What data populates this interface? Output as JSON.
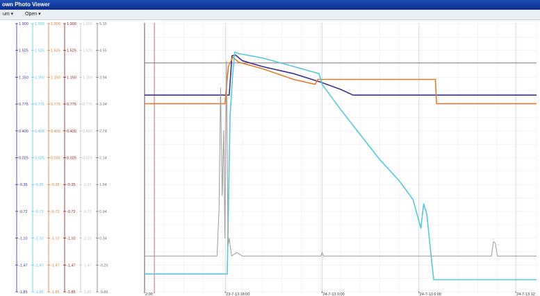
{
  "window": {
    "title": "own Photo Viewer"
  },
  "menu": [
    {
      "label": "um"
    },
    {
      "label": "Open"
    }
  ],
  "chart_data": {
    "type": "line",
    "grid": true,
    "legend": "none",
    "axes": [
      {
        "color": "#3b2f8f",
        "ticks": [
          "1.900",
          "1.525",
          "1.150",
          "0.775",
          "0.400",
          "0.025",
          "-0.35",
          "-0.72",
          "-1.10",
          "-1.47",
          "-1.85"
        ]
      },
      {
        "color": "#56c8de",
        "ticks": [
          "1.900",
          "1.525",
          "1.150",
          "0.775",
          "0.400",
          "0.025",
          "-0.35",
          "-0.72",
          "-1.10",
          "-1.47",
          "-1.85"
        ]
      },
      {
        "color": "#e07b2c",
        "ticks": [
          "1.900",
          "1.525",
          "1.150",
          "0.775",
          "0.400",
          "0.025",
          "-0.35",
          "-0.72",
          "-1.10",
          "-1.47",
          "-1.85"
        ]
      },
      {
        "color": "#8b1a1a",
        "ticks": [
          "1.900",
          "1.525",
          "1.150",
          "0.775",
          "0.400",
          "0.025",
          "-0.35",
          "-0.72",
          "-1.10",
          "-1.47",
          "-1.85"
        ]
      },
      {
        "color": "#c0c0c0",
        "ticks": [
          "1.900",
          "1.525",
          "1.150",
          "0.775",
          "0.400",
          "0.025",
          "-0.35",
          "-0.72",
          "-1.10",
          "-1.47",
          "-1.85"
        ]
      },
      {
        "color": "#777777",
        "ticks": [
          "5.15",
          "4.55",
          "3.94",
          "3.34",
          "2.74",
          "2.14",
          "1.54",
          "0.94",
          "0.34",
          "-0.26",
          "-0.86"
        ]
      }
    ],
    "ylim": [
      -1.85,
      1.9
    ],
    "xlim": [
      0,
      100
    ],
    "x_ticks": [
      {
        "x": 0,
        "label": "2:00"
      },
      {
        "x": 20.6,
        "label": "23-7-13 18:00"
      },
      {
        "x": 45.3,
        "label": "24-7-13 0:00"
      },
      {
        "x": 70.0,
        "label": "24-7-13 6:00"
      },
      {
        "x": 94.7,
        "label": "24-7-13 12:"
      }
    ],
    "reference_lines": [
      {
        "x": 2.5,
        "color": "#d66a6a"
      },
      {
        "y": 1.35,
        "color": "#8a7a7a"
      }
    ],
    "series": [
      {
        "color": "#3b2f8f",
        "points": [
          [
            0,
            0.9
          ],
          [
            21.6,
            0.9
          ],
          [
            22.3,
            1.45
          ],
          [
            23.2,
            1.46
          ],
          [
            25,
            1.38
          ],
          [
            30,
            1.3
          ],
          [
            38,
            1.2
          ],
          [
            45,
            1.08
          ],
          [
            50,
            0.98
          ],
          [
            53.2,
            0.9
          ],
          [
            100,
            0.9
          ]
        ]
      },
      {
        "color": "#e07b2c",
        "points": [
          [
            0,
            0.78
          ],
          [
            20.5,
            0.78
          ],
          [
            21.4,
            1.3
          ],
          [
            22.5,
            1.43
          ],
          [
            24,
            1.36
          ],
          [
            30,
            1.27
          ],
          [
            38,
            1.12
          ],
          [
            43.5,
            1.05
          ],
          [
            44.2,
            1.12
          ],
          [
            74.2,
            1.12
          ],
          [
            74.5,
            0.78
          ],
          [
            100,
            0.78
          ]
        ]
      },
      {
        "color": "#56c8de",
        "points": [
          [
            0,
            -1.6
          ],
          [
            21.1,
            -1.6
          ],
          [
            21.8,
            0.6
          ],
          [
            22.5,
            1.2
          ],
          [
            23,
            1.5
          ],
          [
            24,
            1.48
          ],
          [
            30,
            1.42
          ],
          [
            38,
            1.3
          ],
          [
            44.5,
            1.2
          ],
          [
            45.3,
            1.05
          ],
          [
            50,
            0.7
          ],
          [
            55,
            0.35
          ],
          [
            60,
            0
          ],
          [
            65,
            -0.3
          ],
          [
            68.5,
            -0.56
          ],
          [
            70.5,
            -0.96
          ],
          [
            71.2,
            -0.62
          ],
          [
            72,
            -0.76
          ],
          [
            73.3,
            -1.45
          ],
          [
            73.8,
            -1.68
          ],
          [
            79,
            -1.68
          ],
          [
            100,
            -1.68
          ]
        ]
      },
      {
        "color": "#9a9a9a",
        "points": [
          [
            0,
            -1.35
          ],
          [
            18.5,
            -1.35
          ],
          [
            19,
            -0.7
          ],
          [
            19.4,
            1.0
          ],
          [
            19.8,
            -0.5
          ],
          [
            20.2,
            0.4
          ],
          [
            20.5,
            -1.1
          ],
          [
            20.9,
            1.38
          ],
          [
            21.3,
            -1.2
          ],
          [
            21.6,
            -1.1
          ],
          [
            22.2,
            -1.35
          ],
          [
            23.5,
            -1.3
          ],
          [
            25,
            -1.35
          ],
          [
            45,
            -1.35
          ],
          [
            45.3,
            -1.3
          ],
          [
            45.7,
            -1.35
          ],
          [
            88.5,
            -1.35
          ],
          [
            89,
            -1.15
          ],
          [
            89.5,
            -1.17
          ],
          [
            90,
            -1.35
          ],
          [
            100,
            -1.35
          ]
        ]
      }
    ]
  }
}
